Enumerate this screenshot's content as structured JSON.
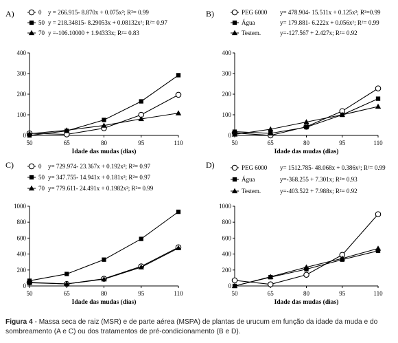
{
  "caption": {
    "label": "Figura 4",
    "text": " - Massa seca de raiz (MSR) e de parte aérea (MSPA) de plantas de urucum em função da idade da muda e do sombreamento (A e C) ou dos tratamentos de pré-condicionamento (B e D)."
  },
  "chart_data": [
    {
      "panel": "A)",
      "type": "line",
      "xlabel": "Idade das mudas (dias)",
      "ylabel": "",
      "x": [
        50,
        65,
        80,
        95,
        110
      ],
      "xlim": [
        50,
        110
      ],
      "ylim": [
        0,
        400
      ],
      "yticks": [
        0,
        100,
        200,
        300,
        400
      ],
      "grid": false,
      "legend_position": "top",
      "series": [
        {
          "name": "0",
          "marker": "circle-open",
          "equation": "y = 266.915- 8.870x + 0.075x²; R²= 0.99",
          "values": [
            10,
            5,
            35,
            100,
            197
          ]
        },
        {
          "name": "50",
          "marker": "square",
          "equation": "y = 218.34815- 8.29053x + 0.08132x²; R²= 0.97",
          "values": [
            0,
            22,
            75,
            165,
            292
          ]
        },
        {
          "name": "70",
          "marker": "triangle",
          "equation": "y =-106.10000 + 1.94333x; R²= 0.83",
          "values": [
            8,
            25,
            48,
            80,
            108
          ]
        }
      ]
    },
    {
      "panel": "B)",
      "type": "line",
      "xlabel": "Idade das mudas (dias)",
      "ylabel": "",
      "x": [
        50,
        65,
        80,
        95,
        110
      ],
      "xlim": [
        50,
        110
      ],
      "ylim": [
        0,
        400
      ],
      "yticks": [
        0,
        100,
        200,
        300,
        400
      ],
      "grid": false,
      "legend_position": "top",
      "series": [
        {
          "name": "PEG 6000",
          "marker": "circle-open",
          "equation": "y= 478.904- 15.511x + 0.125x²; R²=0.99",
          "values": [
            12,
            0,
            42,
            118,
            228
          ]
        },
        {
          "name": "Água",
          "marker": "square",
          "equation": "y= 179.881- 6.222x + 0.056x²; R²= 0.99",
          "values": [
            18,
            10,
            40,
            100,
            178
          ]
        },
        {
          "name": "Testem.",
          "marker": "triangle",
          "equation": "y=-127.567 + 2.427x; R²= 0.92",
          "values": [
            5,
            30,
            65,
            100,
            140
          ]
        }
      ]
    },
    {
      "panel": "C)",
      "type": "line",
      "xlabel": "Idade das mudas (dias)",
      "ylabel": "",
      "x": [
        50,
        65,
        80,
        95,
        110
      ],
      "xlim": [
        50,
        110
      ],
      "ylim": [
        0,
        1000
      ],
      "yticks": [
        0,
        200,
        400,
        600,
        800,
        1000
      ],
      "grid": false,
      "legend_position": "top",
      "series": [
        {
          "name": "0",
          "marker": "circle-open",
          "equation": "y= 729.974- 23.367x + 0.192x²; R²= 0.97",
          "values": [
            45,
            25,
            90,
            245,
            485
          ]
        },
        {
          "name": "50",
          "marker": "square",
          "equation": "y= 347.755- 14.941x + 0.181x²; R²= 0.97",
          "values": [
            65,
            150,
            330,
            590,
            930
          ]
        },
        {
          "name": "70",
          "marker": "triangle",
          "equation": "y= 779.611- 24.491x + 0.1982x²; R²= 0.99",
          "values": [
            40,
            25,
            85,
            235,
            475
          ]
        }
      ]
    },
    {
      "panel": "D)",
      "type": "line",
      "xlabel": "Idade das mudas (dias)",
      "ylabel": "",
      "x": [
        50,
        65,
        80,
        95,
        110
      ],
      "xlim": [
        50,
        110
      ],
      "ylim": [
        0,
        1000
      ],
      "yticks": [
        0,
        200,
        400,
        600,
        800,
        1000
      ],
      "grid": false,
      "legend_position": "top",
      "series": [
        {
          "name": "PEG 6000",
          "marker": "circle-open",
          "equation": "y= 1512.785- 48.068x + 0.386x²; R²= 0.99",
          "values": [
            70,
            20,
            140,
            390,
            900
          ]
        },
        {
          "name": "Água",
          "marker": "square",
          "equation": "y=-368.255 + 7.301x; R²= 0.93",
          "values": [
            0,
            110,
            210,
            330,
            440
          ]
        },
        {
          "name": "Testem.",
          "marker": "triangle",
          "equation": "y=-403.522 + 7.988x; R²= 0.92",
          "values": [
            0,
            115,
            235,
            345,
            470
          ]
        }
      ]
    }
  ]
}
